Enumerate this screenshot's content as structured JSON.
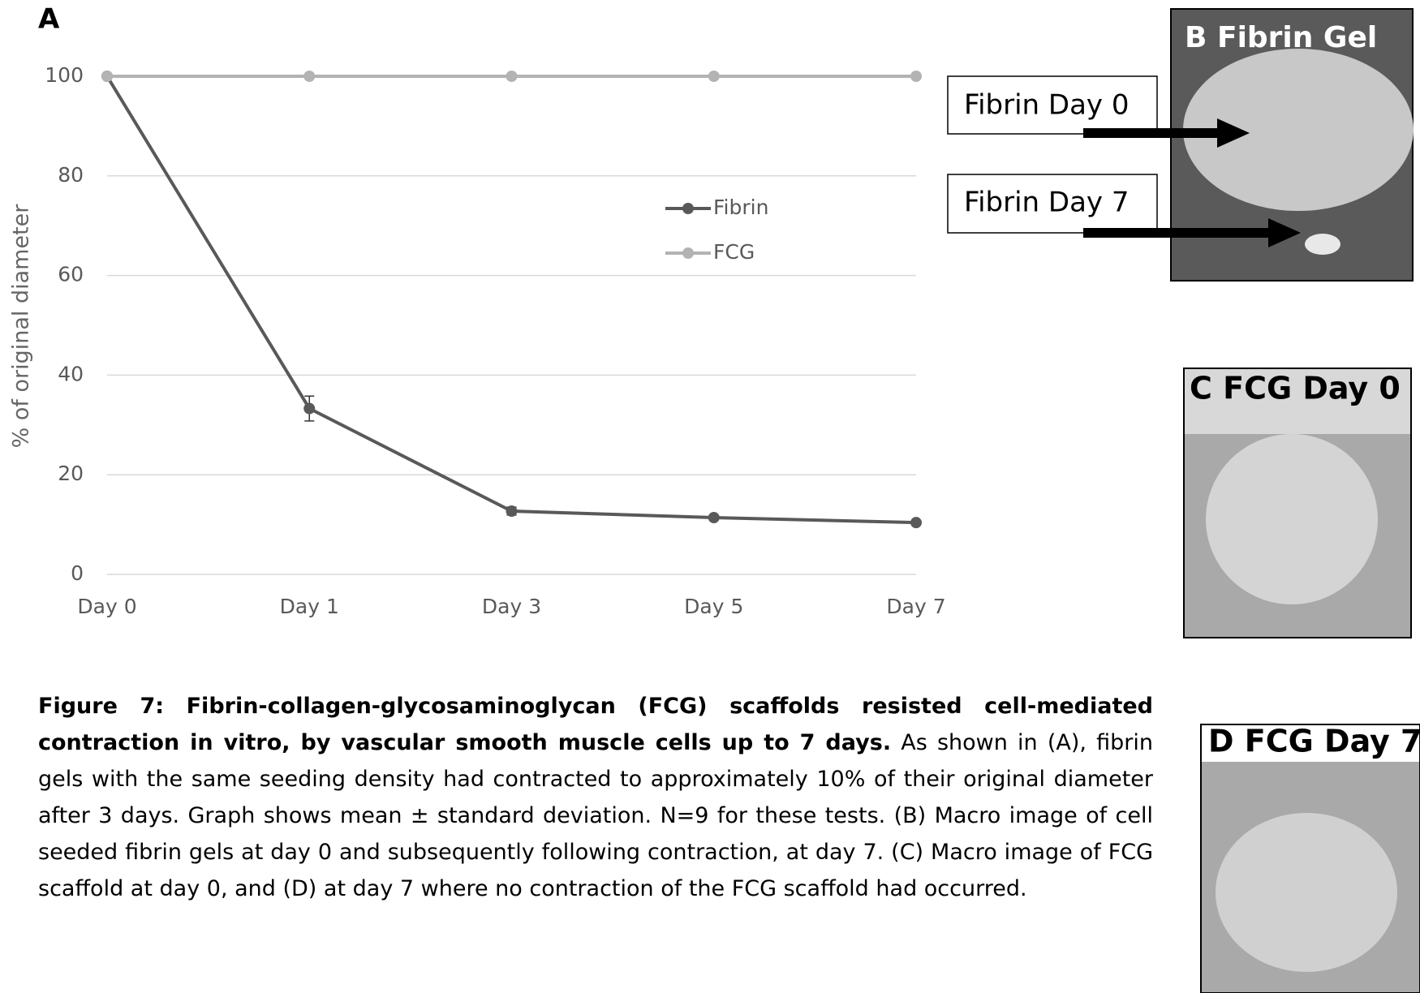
{
  "chart_data": {
    "type": "line",
    "panel_label": "A",
    "y_label": "% of original diameter",
    "categories": [
      "Day 0",
      "Day 1",
      "Day 3",
      "Day 5",
      "Day 7"
    ],
    "series": [
      {
        "name": "Fibrin",
        "color": "#595959",
        "values": [
          100,
          33.3,
          12.7,
          11.4,
          10.4
        ],
        "errors": [
          null,
          2.5,
          0.8,
          0.3,
          0.3
        ]
      },
      {
        "name": "FCG",
        "color": "#b3b3b3",
        "values": [
          100,
          100,
          100,
          100,
          100
        ]
      }
    ],
    "ylim": [
      0,
      100
    ],
    "yticks": [
      0,
      20,
      40,
      60,
      80,
      100
    ],
    "grid": true,
    "legend": "center"
  },
  "panels": [
    {
      "label": "B Fibrin Gel",
      "annotations": [
        "Fibrin Day 0",
        "Fibrin Day 7"
      ]
    },
    {
      "label": "C FCG Day  0"
    },
    {
      "label": "D FCG Day 7"
    }
  ],
  "caption": {
    "bold": "Figure 7: Fibrin-collagen-glycosaminoglycan (FCG) scaffolds resisted cell-mediated contraction in vitro, by vascular smooth muscle cells up to 7 days.",
    "text": " As shown in (A), fibrin gels with the same seeding density had contracted to approximately 10% of their original diameter after 3 days. Graph shows mean ± standard deviation. N=9 for these tests. (B) Macro image of cell seeded fibrin gels at day 0 and subsequently following contraction, at day 7. (C) Macro image of FCG scaffold at day 0, and (D) at day 7 where no contraction of the FCG scaffold had occurred."
  }
}
